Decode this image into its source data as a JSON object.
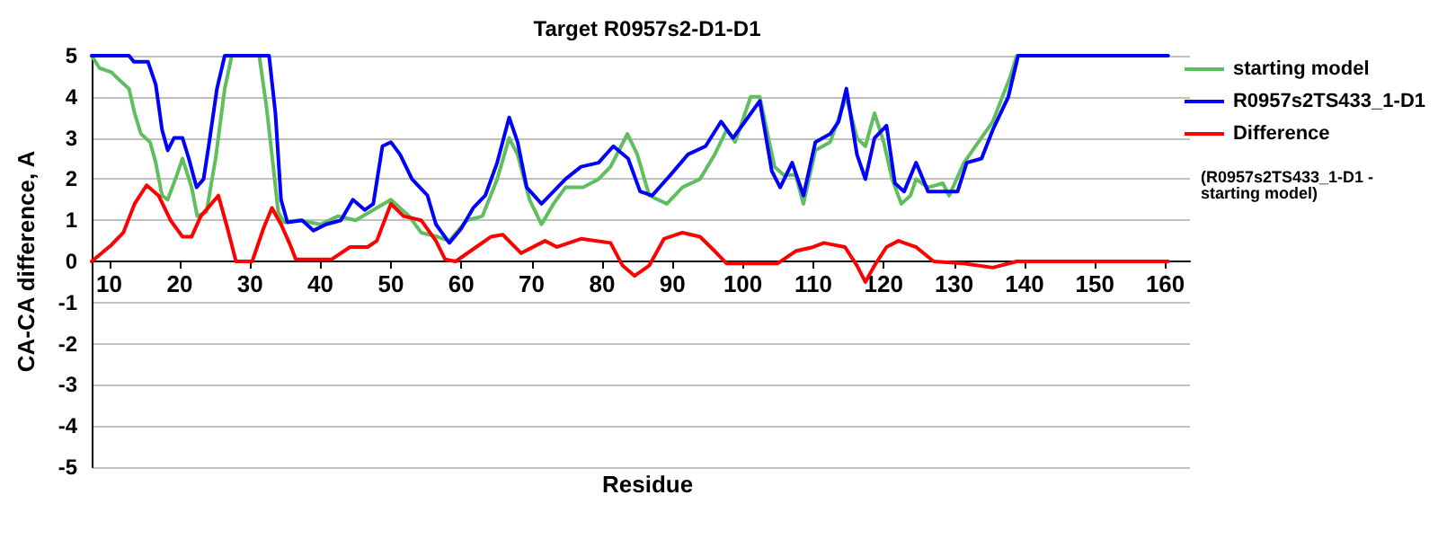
{
  "chart_data": {
    "type": "line",
    "title": "Target R0957s2-D1-D1",
    "xlabel": "Residue",
    "ylabel": "CA-CA difference, A",
    "xlim": [
      7.5,
      163.5
    ],
    "xticks": [
      10,
      20,
      30,
      40,
      50,
      60,
      70,
      80,
      90,
      100,
      110,
      120,
      130,
      140,
      150,
      160
    ],
    "ylim": [
      -5,
      5
    ],
    "yticks": [
      -5,
      -4,
      -3,
      -2,
      -1,
      0,
      1,
      2,
      3,
      4,
      5
    ],
    "grid": "y",
    "legend": "top right",
    "annotations": [
      "(R0957s2TS433_1-D1 - starting model)"
    ],
    "series": [
      {
        "name": "starting model",
        "color": "#5fbf5f",
        "x": [
          7.5,
          8.6,
          10.3,
          11.5,
          12.8,
          13.6,
          14.5,
          15.8,
          16.6,
          17.5,
          18.3,
          19.6,
          20.4,
          21.7,
          22.5,
          23.8,
          25.1,
          26.4,
          27.4,
          31.3,
          32.3,
          33.1,
          34,
          34.8,
          37,
          40,
          42.5,
          45,
          47.5,
          50,
          52.6,
          54.3,
          56.6,
          58.3,
          60.8,
          63,
          65.1,
          66.8,
          68,
          69.7,
          71.4,
          73.1,
          74.8,
          77.3,
          79.5,
          81.2,
          83.6,
          85,
          86.7,
          89.2,
          91.4,
          93.9,
          96,
          97.7,
          98.9,
          101.1,
          102.4,
          104.5,
          105.8,
          107.5,
          108.6,
          110.3,
          112.4,
          114.7,
          116.2,
          117.4,
          118.7,
          120,
          121.2,
          122.5,
          123.8,
          124.6,
          126.3,
          128.4,
          129.3,
          131.4,
          135.5,
          138,
          138.9
        ],
        "values": [
          5,
          4.7,
          4.6,
          4.4,
          4.2,
          3.6,
          3.1,
          2.9,
          2.4,
          1.6,
          1.5,
          2.1,
          2.5,
          1.8,
          1.1,
          1.2,
          2.5,
          4.2,
          5,
          5,
          3.8,
          2.6,
          1.2,
          0.95,
          1.0,
          0.9,
          1.1,
          1.0,
          1.25,
          1.5,
          1.1,
          0.7,
          0.6,
          0.5,
          1.0,
          1.1,
          2.0,
          3.0,
          2.6,
          1.5,
          0.9,
          1.4,
          1.8,
          1.8,
          2.0,
          2.3,
          3.1,
          2.6,
          1.6,
          1.4,
          1.8,
          2.0,
          2.6,
          3.2,
          2.9,
          4.0,
          4.0,
          2.3,
          2.1,
          2.1,
          1.4,
          2.7,
          2.9,
          4.0,
          3.0,
          2.8,
          3.6,
          2.9,
          2.0,
          1.4,
          1.6,
          2.0,
          1.8,
          1.9,
          1.6,
          2.4,
          3.4,
          4.5,
          5
        ]
      },
      {
        "name": "R0957s2TS433_1-D1",
        "color": "#0000ff",
        "x": [
          7.5,
          12.8,
          13.5,
          15.5,
          16.6,
          17.5,
          18.3,
          19.2,
          20.4,
          21.3,
          22.4,
          23.4,
          24.2,
          25.3,
          26.4,
          32.7,
          33.6,
          34.4,
          35.3,
          37.4,
          39,
          40.8,
          42.9,
          44.6,
          46.3,
          47.5,
          48.8,
          50,
          51.3,
          53,
          55.2,
          56.4,
          58.3,
          60,
          61.7,
          63.4,
          65.1,
          66.8,
          68,
          69.3,
          71.4,
          73.1,
          74.8,
          77,
          79.5,
          81.6,
          83.7,
          85.4,
          87.1,
          89.7,
          92.2,
          94.7,
          96.9,
          98.6,
          100.3,
          102.4,
          104.1,
          105.3,
          107,
          108.6,
          110.3,
          112.4,
          113.6,
          114.7,
          116.2,
          117.4,
          118.7,
          120.4,
          121.6,
          122.9,
          124.6,
          126.3,
          130.5,
          131.8,
          133.9,
          135.5,
          137.7,
          139.1,
          157.5,
          160.4
        ],
        "values": [
          5,
          5,
          4.85,
          4.85,
          4.3,
          3.2,
          2.7,
          3.0,
          3.0,
          2.5,
          1.8,
          2.0,
          2.9,
          4.2,
          5,
          5,
          3.6,
          1.5,
          0.95,
          1.0,
          0.75,
          0.9,
          1.0,
          1.5,
          1.25,
          1.4,
          2.8,
          2.9,
          2.6,
          2.0,
          1.6,
          0.9,
          0.45,
          0.8,
          1.3,
          1.6,
          2.4,
          3.5,
          2.9,
          1.8,
          1.4,
          1.7,
          2.0,
          2.3,
          2.4,
          2.8,
          2.5,
          1.7,
          1.6,
          2.1,
          2.6,
          2.8,
          3.4,
          3.0,
          3.4,
          3.9,
          2.2,
          1.8,
          2.4,
          1.6,
          2.9,
          3.1,
          3.4,
          4.2,
          2.6,
          2.0,
          3.0,
          3.3,
          1.9,
          1.7,
          2.4,
          1.7,
          1.7,
          2.4,
          2.5,
          3.2,
          4.0,
          5,
          5,
          5
        ]
      },
      {
        "name": "Difference",
        "color": "#ff0000",
        "x": [
          7.5,
          10.3,
          12,
          13.6,
          15.3,
          17,
          18.7,
          20.4,
          21.7,
          23,
          25.5,
          26.8,
          28,
          30.3,
          31.9,
          33.1,
          34.4,
          35.7,
          36.5,
          39,
          41.6,
          44.2,
          46.7,
          48,
          50,
          51.8,
          54.3,
          56.4,
          57.7,
          59.2,
          61.7,
          64.2,
          65.9,
          68.5,
          71.9,
          73.6,
          77,
          81.2,
          82.9,
          84.6,
          86.7,
          88.8,
          91.4,
          93.9,
          96,
          97.7,
          104.9,
          107.5,
          110,
          111.5,
          114.5,
          116.2,
          117.4,
          118.7,
          120.4,
          122.1,
          124.6,
          127.1,
          131.3,
          135.5,
          138.9,
          160.4
        ],
        "values": [
          0,
          0.4,
          0.7,
          1.4,
          1.85,
          1.6,
          1.0,
          0.6,
          0.6,
          1.1,
          1.6,
          0.8,
          0,
          0,
          0.8,
          1.3,
          0.9,
          0.4,
          0.05,
          0.05,
          0.05,
          0.35,
          0.35,
          0.5,
          1.4,
          1.1,
          1.0,
          0.5,
          0.05,
          0,
          0.3,
          0.6,
          0.65,
          0.2,
          0.5,
          0.35,
          0.55,
          0.45,
          -0.1,
          -0.35,
          -0.1,
          0.55,
          0.7,
          0.6,
          0.25,
          -0.05,
          -0.05,
          0.25,
          0.35,
          0.45,
          0.35,
          -0.1,
          -0.5,
          -0.1,
          0.35,
          0.5,
          0.35,
          0,
          -0.05,
          -0.15,
          0,
          0
        ]
      }
    ]
  }
}
